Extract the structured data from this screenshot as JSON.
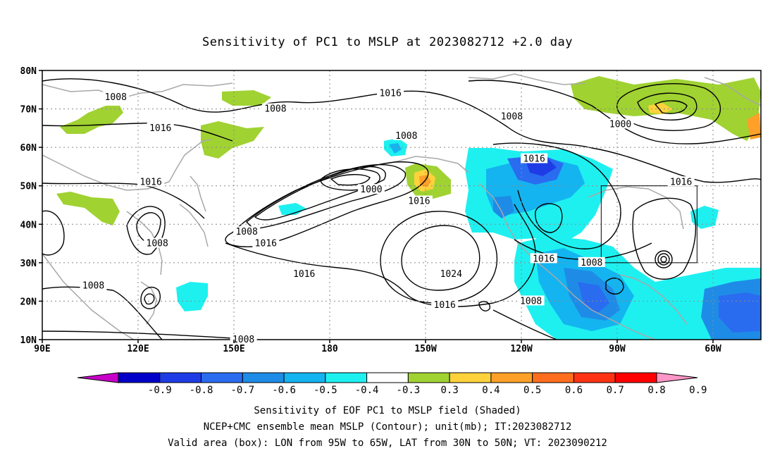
{
  "title": "Sensitivity of PC1 to MSLP at 2023082712 +2.0 day",
  "map": {
    "lat_labels": [
      "80N",
      "70N",
      "60N",
      "50N",
      "40N",
      "30N",
      "20N",
      "10N"
    ],
    "lon_labels": [
      "90E",
      "120E",
      "150E",
      "180",
      "150W",
      "120W",
      "90W",
      "60W"
    ],
    "contour_labels": [
      {
        "text": "1008",
        "lon": 113,
        "lat": 73
      },
      {
        "text": "1008",
        "lon": 163,
        "lat": 70
      },
      {
        "text": "1016",
        "lon": 127,
        "lat": 65
      },
      {
        "text": "1016",
        "lon": 199,
        "lat": 74
      },
      {
        "text": "1008",
        "lon": 204,
        "lat": 63
      },
      {
        "text": "1008",
        "lon": 237,
        "lat": 68
      },
      {
        "text": "1000",
        "lon": 271,
        "lat": 66
      },
      {
        "text": "1016",
        "lon": 244,
        "lat": 57
      },
      {
        "text": "1016",
        "lon": 124,
        "lat": 51
      },
      {
        "text": "1000",
        "lon": 193,
        "lat": 49
      },
      {
        "text": "1016",
        "lon": 208,
        "lat": 46
      },
      {
        "text": "1016",
        "lon": 290,
        "lat": 51
      },
      {
        "text": "1008",
        "lon": 154,
        "lat": 38
      },
      {
        "text": "1016",
        "lon": 160,
        "lat": 35
      },
      {
        "text": "1008",
        "lon": 126,
        "lat": 35
      },
      {
        "text": "1016",
        "lon": 172,
        "lat": 27
      },
      {
        "text": "1024",
        "lon": 218,
        "lat": 27
      },
      {
        "text": "1016",
        "lon": 247,
        "lat": 31
      },
      {
        "text": "1008",
        "lon": 262,
        "lat": 30
      },
      {
        "text": "1008",
        "lon": 106,
        "lat": 24
      },
      {
        "text": "1016",
        "lon": 216,
        "lat": 19
      },
      {
        "text": "1008",
        "lon": 243,
        "lat": 20
      },
      {
        "text": "1008",
        "lon": 153,
        "lat": 10
      }
    ],
    "valid_box": {
      "lon_min": 265,
      "lon_max": 295,
      "lat_min": 30,
      "lat_max": 50
    }
  },
  "colorbar": {
    "labels": [
      "-0.9",
      "-0.8",
      "-0.7",
      "-0.6",
      "-0.5",
      "-0.4",
      "-0.3",
      "0.3",
      "0.4",
      "0.5",
      "0.6",
      "0.7",
      "0.8",
      "0.9"
    ],
    "colors": [
      "#c800c8",
      "#0000c8",
      "#1e3ce6",
      "#2a6cf0",
      "#1e8ce6",
      "#14b4f0",
      "#1ef0f0",
      "#ffffff",
      "#a0d232",
      "#ffd23c",
      "#ffa028",
      "#ff6e1e",
      "#ff3214",
      "#ff0000",
      "#ff96c8"
    ]
  },
  "captions": [
    "Sensitivity of EOF PC1 to MSLP field (Shaded)",
    "NCEP+CMC ensemble mean MSLP (Contour); unit(mb); IT:2023082712",
    "Valid area (box): LON from 95W to 65W, LAT from 30N to 50N; VT: 2023090212"
  ]
}
